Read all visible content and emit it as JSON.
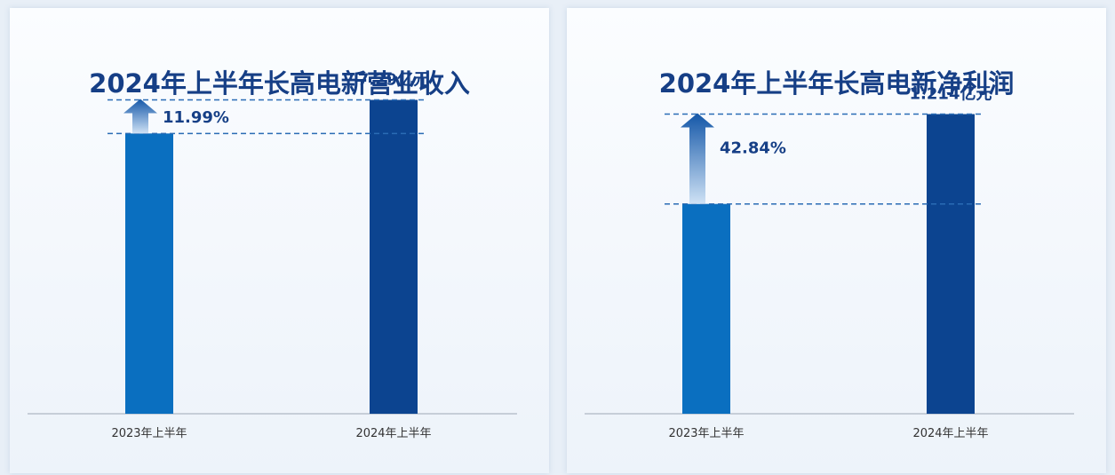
{
  "chart_data": [
    {
      "type": "bar",
      "title": "2024年上半年长高电新营业收入",
      "categories": [
        "2023年上半年",
        "2024年上半年"
      ],
      "values": [
        6.51,
        7.29
      ],
      "value_label": "7.29亿元",
      "growth_label": "11.99%",
      "ylim": [
        0,
        8.6
      ],
      "colors": [
        "#0a6fc0",
        "#0c4490"
      ]
    },
    {
      "type": "bar",
      "title": "2024年上半年长高电新净利润",
      "categories": [
        "2023年上半年",
        "2024年上半年"
      ],
      "values": [
        0.85,
        1.214
      ],
      "value_label": "1.214亿元",
      "growth_label": "42.84%",
      "ylim": [
        0,
        1.5
      ],
      "colors": [
        "#0a6fc0",
        "#0c4490"
      ]
    }
  ]
}
